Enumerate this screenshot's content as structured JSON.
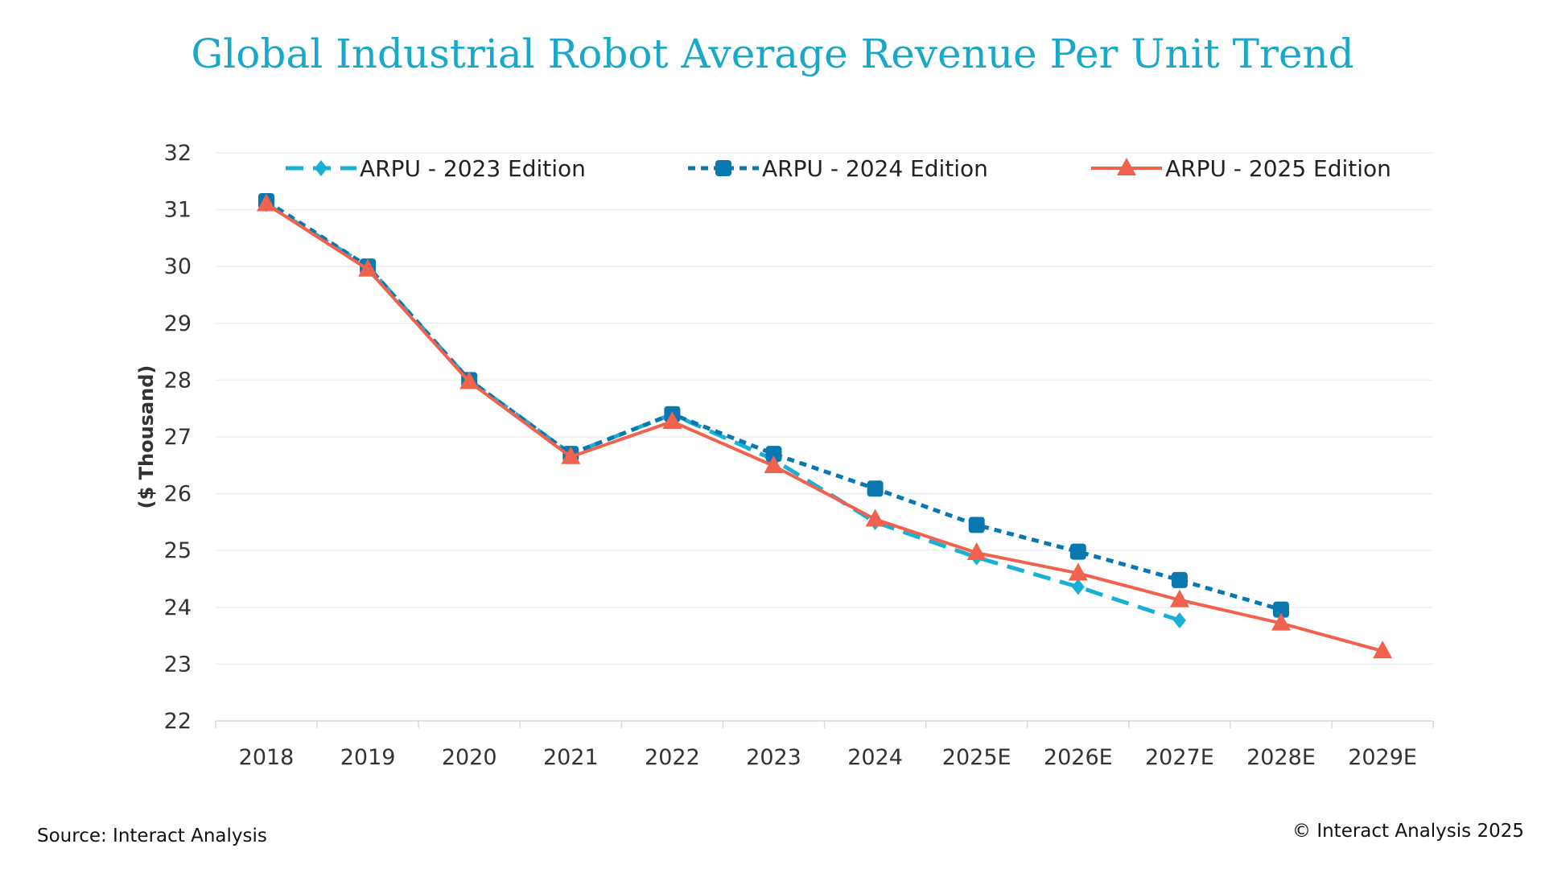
{
  "chart_data": {
    "type": "line",
    "title": "Global Industrial Robot Average Revenue Per Unit Trend",
    "xlabel": "",
    "ylabel": "($ Thousand)",
    "ylim": [
      22,
      32
    ],
    "yticks": [
      "22",
      "23",
      "24",
      "25",
      "26",
      "27",
      "28",
      "29",
      "30",
      "31",
      "32"
    ],
    "categories": [
      "2018",
      "2019",
      "2020",
      "2021",
      "2022",
      "2023",
      "2024",
      "2025E",
      "2026E",
      "2027E",
      "2028E",
      "2029E"
    ],
    "grid": true,
    "legend_position": "top",
    "series": [
      {
        "name": "ARPU - 2023 Edition",
        "color": "#1ab0d4",
        "style": "dashed",
        "marker": "diamond",
        "values": [
          31.1,
          30.0,
          28.0,
          26.7,
          27.4,
          26.6,
          25.5,
          24.88,
          24.36,
          23.77,
          null,
          null
        ]
      },
      {
        "name": "ARPU - 2024 Edition",
        "color": "#0a78b0",
        "style": "dotted",
        "marker": "square",
        "values": [
          31.15,
          30.0,
          28.0,
          26.7,
          27.4,
          26.7,
          26.09,
          25.45,
          24.98,
          24.48,
          23.96,
          null
        ]
      },
      {
        "name": "ARPU - 2025 Edition",
        "color": "#f0614e",
        "style": "solid",
        "marker": "triangle",
        "values": [
          31.1,
          29.95,
          27.97,
          26.65,
          27.27,
          26.49,
          25.55,
          24.96,
          24.6,
          24.13,
          23.72,
          23.23
        ]
      }
    ]
  },
  "footer": {
    "source": "Source: Interact Analysis",
    "copyright": "© Interact Analysis 2025"
  }
}
